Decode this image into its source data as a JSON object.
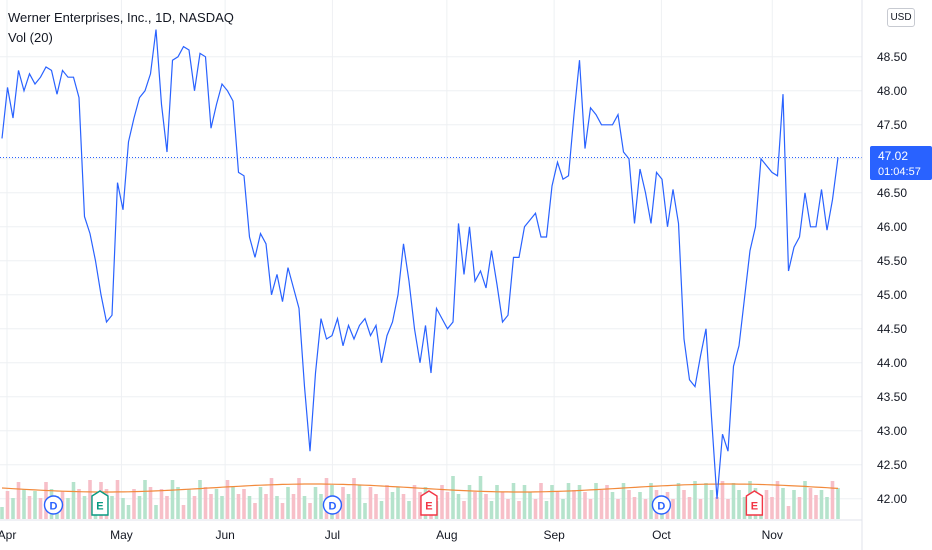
{
  "header": {
    "title": "Werner Enterprises, Inc., 1D, NASDAQ",
    "indicator": "Vol (20)",
    "currency_button": "USD"
  },
  "price_label": {
    "price": "47.02",
    "countdown": "01:04:57"
  },
  "colors": {
    "line": "#2962ff",
    "vol_up": "#b5e3cc",
    "vol_down": "#f7bfc8",
    "vol_ma": "#f28a3c",
    "grid": "#eef0f3",
    "axis_text": "#131722",
    "label_bg": "#2962ff",
    "dividend": "#2962ff",
    "earnings_green": "#089981",
    "earnings_red": "#f23645"
  },
  "events": [
    {
      "type": "dividend",
      "label": "D",
      "date": "Apr 14",
      "color_key": "dividend"
    },
    {
      "type": "earnings",
      "label": "E",
      "date": "Apr 27",
      "color_key": "earnings_green"
    },
    {
      "type": "dividend",
      "label": "D",
      "date": "Jul 1",
      "color_key": "dividend"
    },
    {
      "type": "earnings",
      "label": "E",
      "date": "Jul 28",
      "color_key": "earnings_red"
    },
    {
      "type": "dividend",
      "label": "D",
      "date": "Oct 1",
      "color_key": "dividend"
    },
    {
      "type": "earnings",
      "label": "E",
      "date": "Oct 27",
      "color_key": "earnings_red"
    }
  ],
  "chart_data": {
    "type": "line",
    "title": "Werner Enterprises, Inc., 1D, NASDAQ",
    "ylim": [
      41.85,
      49.1
    ],
    "y_ticks": [
      "42.00",
      "42.50",
      "43.00",
      "43.50",
      "44.00",
      "44.50",
      "45.00",
      "45.50",
      "46.00",
      "46.50",
      "47.00",
      "47.50",
      "48.00",
      "48.50"
    ],
    "x_ticks": [
      {
        "label": "Apr",
        "date": "Apr 1"
      },
      {
        "label": "May",
        "date": "May 3"
      },
      {
        "label": "Jun",
        "date": "Jun 1"
      },
      {
        "label": "Jul",
        "date": "Jul 1"
      },
      {
        "label": "Aug",
        "date": "Aug 2"
      },
      {
        "label": "Sep",
        "date": "Sep 1"
      },
      {
        "label": "Oct",
        "date": "Oct 1"
      },
      {
        "label": "Nov",
        "date": "Nov 1"
      }
    ],
    "last_value": 47.02,
    "price": [
      47.3,
      48.05,
      47.6,
      48.3,
      48.0,
      48.25,
      48.1,
      48.2,
      48.35,
      48.3,
      47.95,
      48.3,
      48.2,
      48.2,
      47.9,
      46.15,
      45.9,
      45.5,
      45.0,
      44.6,
      44.7,
      46.65,
      46.25,
      47.25,
      47.6,
      47.9,
      48.0,
      48.25,
      48.9,
      47.8,
      47.1,
      48.45,
      48.5,
      48.65,
      48.6,
      48.0,
      48.55,
      48.5,
      47.45,
      47.8,
      48.1,
      48.0,
      47.85,
      46.8,
      46.75,
      45.85,
      45.55,
      45.9,
      45.75,
      45.0,
      45.3,
      44.9,
      45.4,
      45.1,
      44.8,
      43.65,
      42.7,
      43.85,
      44.65,
      44.35,
      44.4,
      44.65,
      44.25,
      44.55,
      44.35,
      44.55,
      44.65,
      44.4,
      44.55,
      44.0,
      44.4,
      44.6,
      45.0,
      45.75,
      45.2,
      44.5,
      44.0,
      44.55,
      43.85,
      44.8,
      44.65,
      44.5,
      44.6,
      46.05,
      45.3,
      46.0,
      45.2,
      45.35,
      45.1,
      45.65,
      45.15,
      44.6,
      44.7,
      45.55,
      45.55,
      46.0,
      46.1,
      46.2,
      45.85,
      45.85,
      46.6,
      46.95,
      46.7,
      46.75,
      47.65,
      48.45,
      47.15,
      47.75,
      47.65,
      47.5,
      47.5,
      47.5,
      47.65,
      47.1,
      47.0,
      46.05,
      46.85,
      46.5,
      46.05,
      46.8,
      46.7,
      46.0,
      46.55,
      46.05,
      44.35,
      43.75,
      43.65,
      44.1,
      44.5,
      43.2,
      42.0,
      42.95,
      42.7,
      43.95,
      44.25,
      44.95,
      45.65,
      46.0,
      47.0,
      46.9,
      46.8,
      46.75,
      47.95,
      45.35,
      45.7,
      45.85,
      46.5,
      46.0,
      46.0,
      46.55,
      45.95,
      46.4,
      47.02
    ],
    "volume_up": [
      1,
      0,
      1,
      0,
      1,
      0,
      1,
      0,
      0,
      1,
      1,
      0,
      1,
      1,
      0,
      1,
      0,
      1,
      0,
      0,
      1,
      0,
      1,
      1,
      0,
      1,
      1,
      0,
      1,
      0,
      0,
      1,
      1,
      0,
      1,
      0,
      1,
      0,
      0,
      1,
      1,
      0,
      1,
      0,
      0,
      1,
      0,
      1,
      0,
      0,
      1,
      0,
      1,
      0,
      0,
      1,
      0,
      1,
      1,
      0,
      1,
      0,
      0,
      1,
      0,
      1,
      1,
      0,
      0,
      1,
      0,
      1,
      1,
      0,
      1,
      0,
      0,
      1,
      0,
      1,
      0,
      0,
      1,
      1,
      0,
      1,
      0,
      1,
      0,
      1,
      1,
      0,
      0,
      1,
      0,
      1,
      1,
      0,
      0,
      1,
      1,
      0,
      1,
      1,
      0,
      1,
      0,
      0,
      1,
      0,
      0,
      1,
      0,
      1,
      0,
      0,
      1,
      0,
      1,
      0,
      1,
      0,
      0,
      1,
      0,
      0,
      1,
      0,
      1,
      1,
      0,
      0,
      0,
      1,
      1,
      1,
      1,
      1,
      1,
      0,
      0,
      0,
      1,
      0,
      1,
      0,
      1,
      0,
      0,
      1,
      1,
      0,
      1
    ]
  }
}
